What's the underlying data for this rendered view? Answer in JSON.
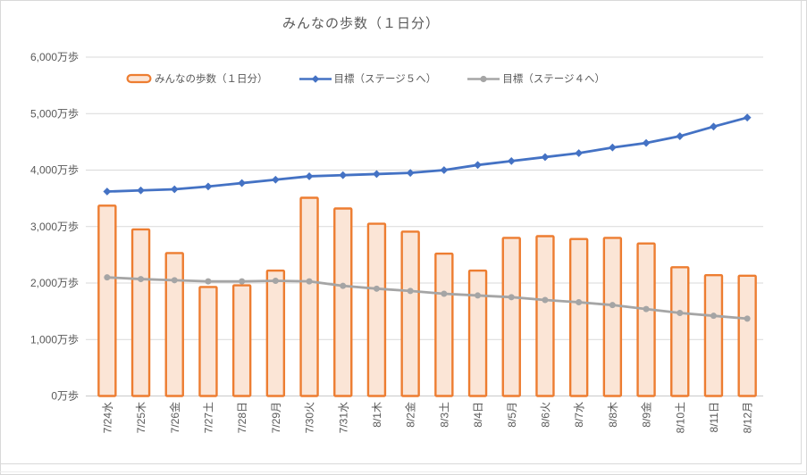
{
  "window": {
    "background": "#FFFFFF"
  },
  "chart_data": {
    "type": "bar",
    "title": "みんなの歩数（１日分）",
    "categories": [
      "7/24水",
      "7/25木",
      "7/26金",
      "7/27土",
      "7/28日",
      "7/29月",
      "7/30火",
      "7/31水",
      "8/1木",
      "8/2金",
      "8/3土",
      "8/4日",
      "8/5月",
      "8/6火",
      "8/7水",
      "8/8木",
      "8/9金",
      "8/10土",
      "8/11日",
      "8/12月"
    ],
    "series": [
      {
        "name": "みんなの歩数（１日分）",
        "type": "bar",
        "color": "#ED7D31",
        "fill": "#FBE5D6",
        "values": [
          3370,
          2950,
          2530,
          1930,
          1960,
          2220,
          3510,
          3320,
          3050,
          2910,
          2520,
          2220,
          2800,
          2830,
          2780,
          2800,
          2700,
          2280,
          2140,
          2130
        ]
      },
      {
        "name": "目標（ステージ５へ）",
        "type": "line",
        "marker": "diamond",
        "color": "#4472C4",
        "values": [
          3620,
          3640,
          3660,
          3710,
          3770,
          3830,
          3890,
          3910,
          3930,
          3950,
          4000,
          4090,
          4160,
          4230,
          4300,
          4400,
          4480,
          4600,
          4770,
          4930
        ]
      },
      {
        "name": "目標（ステージ４へ）",
        "type": "line",
        "marker": "circle",
        "color": "#A5A5A5",
        "values": [
          2100,
          2070,
          2050,
          2030,
          2030,
          2040,
          2030,
          1950,
          1900,
          1860,
          1810,
          1780,
          1750,
          1700,
          1660,
          1610,
          1540,
          1470,
          1420,
          1370
        ]
      }
    ],
    "xlabel": "",
    "ylabel": "",
    "ylim": [
      0,
      6000
    ],
    "ytick_step": 1000,
    "y_axis": {
      "unit": "万歩",
      "tick_labels": [
        "0万歩",
        "1,000万歩",
        "2,000万歩",
        "3,000万歩",
        "4,000万歩",
        "5,000万歩",
        "6,000万歩"
      ]
    },
    "grid": true,
    "legend_position": "top",
    "colors": {
      "grid": "#D9D9D9",
      "axis_line": "#C9C9C9",
      "text": "#595959",
      "frame_border": "#D9D9D9"
    }
  }
}
